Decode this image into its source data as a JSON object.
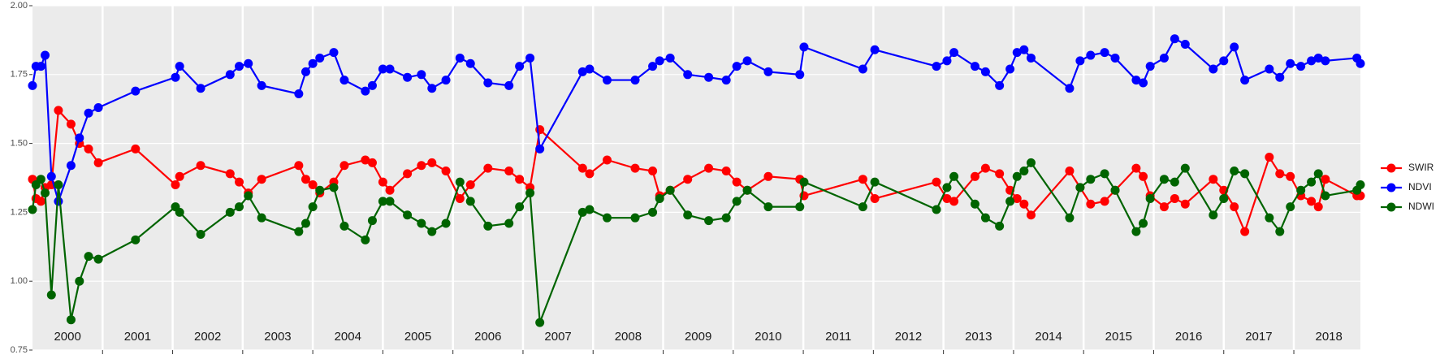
{
  "chart_data": {
    "type": "line",
    "x": [
      2000,
      2000.05,
      2000.12,
      2000.18,
      2000.27,
      2000.37,
      2000.55,
      2000.67,
      2000.8,
      2000.94,
      2001.47,
      2002.04,
      2002.1,
      2002.4,
      2002.82,
      2002.95,
      2003.08,
      2003.27,
      2003.8,
      2003.9,
      2004.0,
      2004.1,
      2004.3,
      2004.45,
      2004.75,
      2004.85,
      2005.0,
      2005.1,
      2005.35,
      2005.55,
      2005.7,
      2005.9,
      2006.1,
      2006.25,
      2006.5,
      2006.8,
      2006.95,
      2007.1,
      2007.24,
      2007.85,
      2007.95,
      2008.2,
      2008.6,
      2008.85,
      2008.95,
      2009.1,
      2009.35,
      2009.65,
      2009.9,
      2010.05,
      2010.2,
      2010.5,
      2010.95,
      2011.01,
      2011.85,
      2012.02,
      2012.9,
      2013.05,
      2013.15,
      2013.45,
      2013.6,
      2013.8,
      2013.95,
      2014.05,
      2014.15,
      2014.25,
      2014.8,
      2014.95,
      2015.1,
      2015.3,
      2015.45,
      2015.75,
      2015.85,
      2015.95,
      2016.15,
      2016.3,
      2016.45,
      2016.85,
      2017.0,
      2017.15,
      2017.3,
      2017.65,
      2017.8,
      2017.95,
      2018.1,
      2018.25,
      2018.35,
      2018.45,
      2018.9,
      2018.95
    ],
    "series": [
      {
        "name": "SWIR",
        "color": "#ff0000",
        "values": [
          1.37,
          1.3,
          1.29,
          1.34,
          1.35,
          1.62,
          1.57,
          1.5,
          1.48,
          1.43,
          1.48,
          1.35,
          1.38,
          1.42,
          1.39,
          1.36,
          1.32,
          1.37,
          1.42,
          1.37,
          1.35,
          1.32,
          1.36,
          1.42,
          1.44,
          1.43,
          1.36,
          1.33,
          1.39,
          1.42,
          1.43,
          1.4,
          1.3,
          1.35,
          1.41,
          1.4,
          1.37,
          1.34,
          1.55,
          1.41,
          1.39,
          1.44,
          1.41,
          1.4,
          1.31,
          1.33,
          1.37,
          1.41,
          1.4,
          1.36,
          1.33,
          1.38,
          1.37,
          1.31,
          1.37,
          1.3,
          1.36,
          1.3,
          1.29,
          1.38,
          1.41,
          1.39,
          1.33,
          1.3,
          1.28,
          1.24,
          1.4,
          1.34,
          1.28,
          1.29,
          1.33,
          1.41,
          1.38,
          1.31,
          1.27,
          1.3,
          1.28,
          1.37,
          1.33,
          1.27,
          1.18,
          1.45,
          1.39,
          1.38,
          1.31,
          1.29,
          1.27,
          1.37,
          1.31,
          1.31
        ]
      },
      {
        "name": "NDVI",
        "color": "#0000ff",
        "values": [
          1.71,
          1.78,
          1.78,
          1.82,
          1.38,
          1.29,
          1.42,
          1.52,
          1.61,
          1.63,
          1.69,
          1.74,
          1.78,
          1.7,
          1.75,
          1.78,
          1.79,
          1.71,
          1.68,
          1.76,
          1.79,
          1.81,
          1.83,
          1.73,
          1.69,
          1.71,
          1.77,
          1.77,
          1.74,
          1.75,
          1.7,
          1.73,
          1.81,
          1.79,
          1.72,
          1.71,
          1.78,
          1.81,
          1.48,
          1.76,
          1.77,
          1.73,
          1.73,
          1.78,
          1.8,
          1.81,
          1.75,
          1.74,
          1.73,
          1.78,
          1.8,
          1.76,
          1.75,
          1.85,
          1.77,
          1.84,
          1.78,
          1.8,
          1.83,
          1.78,
          1.76,
          1.71,
          1.77,
          1.83,
          1.84,
          1.81,
          1.7,
          1.8,
          1.82,
          1.83,
          1.81,
          1.73,
          1.72,
          1.78,
          1.81,
          1.88,
          1.86,
          1.77,
          1.8,
          1.85,
          1.73,
          1.77,
          1.74,
          1.79,
          1.78,
          1.8,
          1.81,
          1.8,
          1.81,
          1.79
        ]
      },
      {
        "name": "NDWI",
        "color": "#006400",
        "values": [
          1.26,
          1.35,
          1.37,
          1.32,
          0.95,
          1.35,
          0.86,
          1.0,
          1.09,
          1.08,
          1.15,
          1.27,
          1.25,
          1.17,
          1.25,
          1.27,
          1.31,
          1.23,
          1.18,
          1.21,
          1.27,
          1.33,
          1.34,
          1.2,
          1.15,
          1.22,
          1.29,
          1.29,
          1.24,
          1.21,
          1.18,
          1.21,
          1.36,
          1.29,
          1.2,
          1.21,
          1.27,
          1.32,
          0.85,
          1.25,
          1.26,
          1.23,
          1.23,
          1.25,
          1.3,
          1.33,
          1.24,
          1.22,
          1.23,
          1.29,
          1.33,
          1.27,
          1.27,
          1.36,
          1.27,
          1.36,
          1.26,
          1.34,
          1.38,
          1.28,
          1.23,
          1.2,
          1.29,
          1.38,
          1.4,
          1.43,
          1.23,
          1.34,
          1.37,
          1.39,
          1.33,
          1.18,
          1.21,
          1.3,
          1.37,
          1.36,
          1.41,
          1.24,
          1.3,
          1.4,
          1.39,
          1.23,
          1.18,
          1.27,
          1.33,
          1.36,
          1.39,
          1.31,
          1.33,
          1.35
        ]
      }
    ],
    "xlim": [
      2000,
      2018.95
    ],
    "xticks": [
      {
        "value": 2000.5,
        "label": "2000"
      },
      {
        "value": 2001.5,
        "label": "2001"
      },
      {
        "value": 2002.5,
        "label": "2002"
      },
      {
        "value": 2003.5,
        "label": "2003"
      },
      {
        "value": 2004.5,
        "label": "2004"
      },
      {
        "value": 2005.5,
        "label": "2005"
      },
      {
        "value": 2006.5,
        "label": "2006"
      },
      {
        "value": 2007.5,
        "label": "2007"
      },
      {
        "value": 2008.5,
        "label": "2008"
      },
      {
        "value": 2009.5,
        "label": "2009"
      },
      {
        "value": 2010.5,
        "label": "2010"
      },
      {
        "value": 2011.5,
        "label": "2011"
      },
      {
        "value": 2012.5,
        "label": "2012"
      },
      {
        "value": 2013.5,
        "label": "2013"
      },
      {
        "value": 2014.5,
        "label": "2014"
      },
      {
        "value": 2015.5,
        "label": "2015"
      },
      {
        "value": 2016.5,
        "label": "2016"
      },
      {
        "value": 2017.5,
        "label": "2017"
      },
      {
        "value": 2018.5,
        "label": "2018"
      }
    ],
    "xgrid": [
      2001,
      2002,
      2003,
      2004,
      2005,
      2006,
      2007,
      2008,
      2009,
      2010,
      2011,
      2012,
      2013,
      2014,
      2015,
      2016,
      2017,
      2018
    ],
    "ylim": [
      0.75,
      2.0
    ],
    "yticks": [
      0.75,
      {
        "value": 1,
        "label": "1.00"
      },
      1.25,
      {
        "value": 1.5,
        "label": "1.50"
      },
      1.75,
      {
        "value": 2,
        "label": "2.00"
      }
    ],
    "grid": true,
    "legend": "right"
  }
}
